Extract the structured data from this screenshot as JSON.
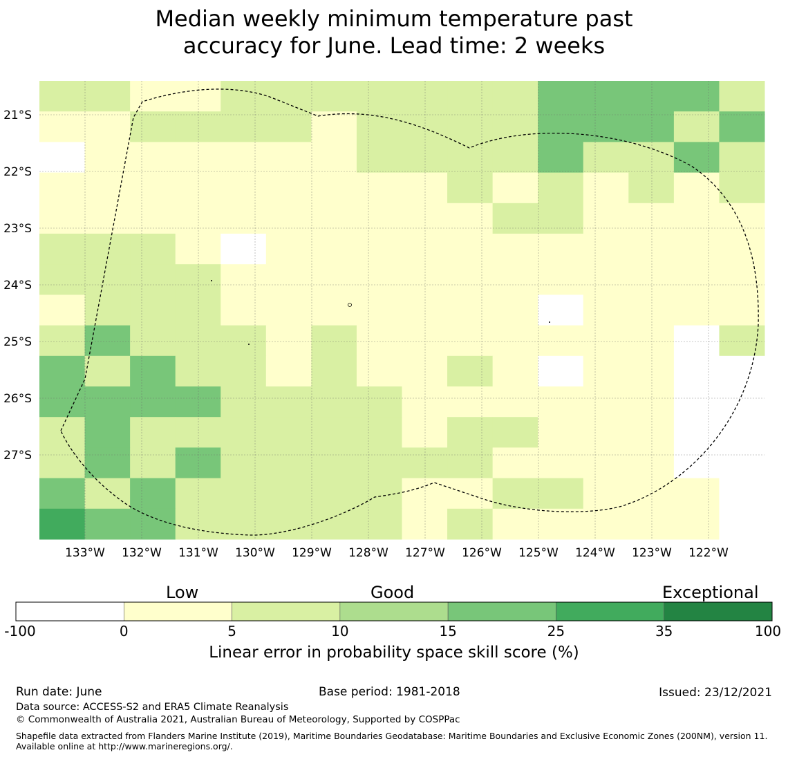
{
  "title_line1": "Median weekly minimum temperature past",
  "title_line2": "accuracy for June. Lead time: 2 weeks",
  "map": {
    "lon_labels": [
      "133°W",
      "132°W",
      "131°W",
      "130°W",
      "129°W",
      "128°W",
      "127°W",
      "126°W",
      "125°W",
      "124°W",
      "123°W",
      "122°W"
    ],
    "lat_labels": [
      "21°S",
      "22°S",
      "23°S",
      "24°S",
      "25°S",
      "26°S",
      "27°S"
    ],
    "grid_columns": 16,
    "grid_rows": 15,
    "grid_values": [
      [
        5,
        5,
        0,
        0,
        5,
        5,
        5,
        5,
        5,
        5,
        5,
        15,
        15,
        15,
        15,
        5
      ],
      [
        0,
        0,
        5,
        5,
        5,
        5,
        0,
        5,
        5,
        5,
        5,
        15,
        15,
        15,
        5,
        15
      ],
      [
        -100,
        0,
        0,
        0,
        0,
        0,
        0,
        5,
        5,
        5,
        5,
        15,
        5,
        5,
        15,
        5
      ],
      [
        0,
        0,
        0,
        0,
        0,
        0,
        0,
        0,
        0,
        5,
        0,
        5,
        0,
        5,
        0,
        5
      ],
      [
        0,
        0,
        0,
        0,
        0,
        0,
        0,
        0,
        0,
        0,
        5,
        5,
        0,
        0,
        0,
        0
      ],
      [
        5,
        5,
        5,
        0,
        -100,
        0,
        0,
        0,
        0,
        0,
        0,
        0,
        0,
        0,
        0,
        0
      ],
      [
        5,
        5,
        5,
        5,
        0,
        0,
        0,
        0,
        0,
        0,
        0,
        0,
        0,
        0,
        0,
        0
      ],
      [
        0,
        5,
        5,
        5,
        0,
        0,
        0,
        0,
        0,
        0,
        0,
        -100,
        0,
        0,
        0,
        0
      ],
      [
        5,
        15,
        5,
        5,
        5,
        0,
        5,
        0,
        0,
        0,
        0,
        0,
        0,
        0,
        -100,
        5
      ],
      [
        15,
        5,
        15,
        5,
        5,
        0,
        5,
        0,
        0,
        5,
        0,
        -100,
        0,
        0,
        -100,
        -100
      ],
      [
        15,
        15,
        15,
        15,
        5,
        5,
        5,
        5,
        0,
        0,
        0,
        0,
        0,
        0,
        -100,
        -100
      ],
      [
        5,
        15,
        5,
        5,
        5,
        5,
        5,
        5,
        0,
        5,
        5,
        0,
        0,
        0,
        -100,
        -100
      ],
      [
        5,
        15,
        5,
        15,
        5,
        5,
        5,
        5,
        5,
        5,
        0,
        0,
        0,
        0,
        -100,
        -100
      ],
      [
        15,
        5,
        15,
        5,
        5,
        5,
        5,
        5,
        0,
        0,
        5,
        5,
        0,
        0,
        0,
        -100
      ],
      [
        25,
        15,
        15,
        5,
        5,
        5,
        5,
        5,
        0,
        5,
        0,
        0,
        0,
        0,
        0,
        -100
      ]
    ]
  },
  "colorbar": {
    "categories": [
      "Low",
      "Good",
      "Exceptional"
    ],
    "ticks": [
      "-100",
      "0",
      "5",
      "10",
      "15",
      "25",
      "35",
      "100"
    ],
    "colors": [
      "#ffffff",
      "#ffffcc",
      "#d9f0a3",
      "#addd8e",
      "#78c679",
      "#41ab5d",
      "#238443"
    ],
    "label": "Linear error in probability space skill score (%)"
  },
  "footer": {
    "run_date": "Run date: June",
    "base_period": "Base period: 1981-2018",
    "issued": "Issued: 23/12/2021",
    "data_source": "Data source: ACCESS-S2 and ERA5 Climate Reanalysis",
    "copyright": "© Commonwealth of Australia 2021, Australian Bureau of Meteorology, Supported by COSPPac",
    "shapefile": "Shapefile data extracted from Flanders Marine Institute (2019), Maritime Boundaries Geodatabase: Maritime Boundaries and Exclusive Economic Zones (200NM), version 11. Available online at http://www.marineregions.org/."
  }
}
